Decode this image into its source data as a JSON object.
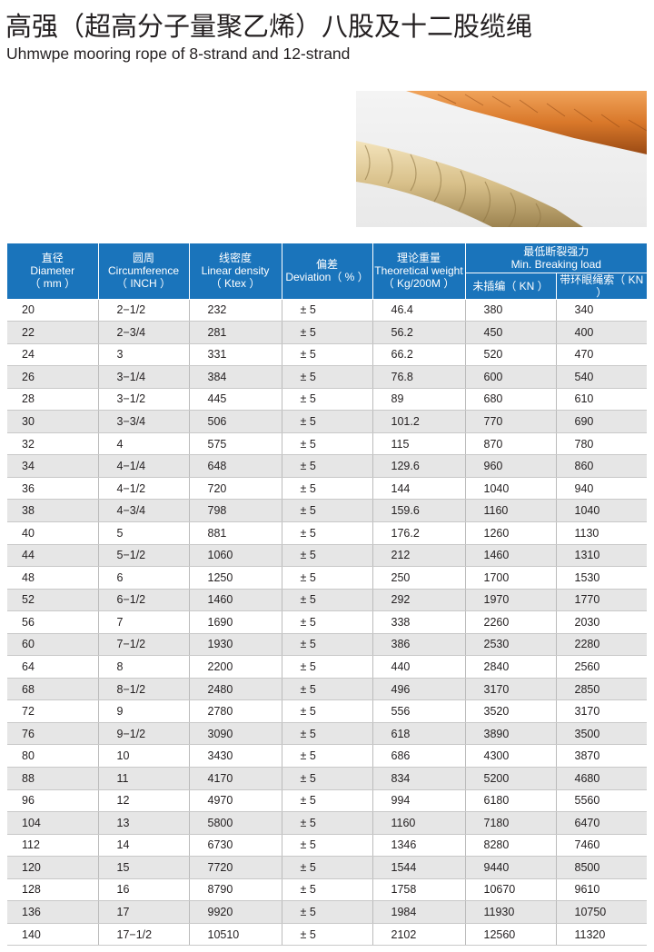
{
  "title": "高强（超高分子量聚乙烯）八股及十二股缆绳",
  "subtitle": "Uhmwpe mooring rope of 8-strand and 12-strand",
  "table": {
    "headers": [
      {
        "cn": "直径",
        "en": "Diameter",
        "unit": "（ mm ）"
      },
      {
        "cn": "圆周",
        "en": "Circumference",
        "unit": "（ INCH ）"
      },
      {
        "cn": "线密度",
        "en": "Linear density",
        "unit": "（ Ktex ）"
      },
      {
        "cn": "偏差",
        "en": "Deviation（ % ）"
      },
      {
        "cn": "理论重量",
        "en": "Theoretical weight",
        "unit": "（ Kg/200M ）"
      },
      {
        "cn": "最低断裂强力",
        "en": "Min. Breaking load"
      }
    ],
    "subheaders": [
      "未插编（ KN ）",
      "带环眼绳索（ KN ）"
    ],
    "rows": [
      [
        "20",
        "2−1/2",
        "232",
        "± 5",
        "46.4",
        "380",
        "340"
      ],
      [
        "22",
        "2−3/4",
        "281",
        "± 5",
        "56.2",
        "450",
        "400"
      ],
      [
        "24",
        "3",
        "331",
        "± 5",
        "66.2",
        "520",
        "470"
      ],
      [
        "26",
        "3−1/4",
        "384",
        "± 5",
        "76.8",
        "600",
        "540"
      ],
      [
        "28",
        "3−1/2",
        "445",
        "± 5",
        "89",
        "680",
        "610"
      ],
      [
        "30",
        "3−3/4",
        "506",
        "± 5",
        "101.2",
        "770",
        "690"
      ],
      [
        "32",
        "4",
        "575",
        "± 5",
        "115",
        "870",
        "780"
      ],
      [
        "34",
        "4−1/4",
        "648",
        "± 5",
        "129.6",
        "960",
        "860"
      ],
      [
        "36",
        "4−1/2",
        "720",
        "± 5",
        "144",
        "1040",
        "940"
      ],
      [
        "38",
        "4−3/4",
        "798",
        "± 5",
        "159.6",
        "1160",
        "1040"
      ],
      [
        "40",
        "5",
        "881",
        "± 5",
        "176.2",
        "1260",
        "1130"
      ],
      [
        "44",
        "5−1/2",
        "1060",
        "± 5",
        "212",
        "1460",
        "1310"
      ],
      [
        "48",
        "6",
        "1250",
        "± 5",
        "250",
        "1700",
        "1530"
      ],
      [
        "52",
        "6−1/2",
        "1460",
        "± 5",
        "292",
        "1970",
        "1770"
      ],
      [
        "56",
        "7",
        "1690",
        "± 5",
        "338",
        "2260",
        "2030"
      ],
      [
        "60",
        "7−1/2",
        "1930",
        "± 5",
        "386",
        "2530",
        "2280"
      ],
      [
        "64",
        "8",
        "2200",
        "± 5",
        "440",
        "2840",
        "2560"
      ],
      [
        "68",
        "8−1/2",
        "2480",
        "± 5",
        "496",
        "3170",
        "2850"
      ],
      [
        "72",
        "9",
        "2780",
        "± 5",
        "556",
        "3520",
        "3170"
      ],
      [
        "76",
        "9−1/2",
        "3090",
        "± 5",
        "618",
        "3890",
        "3500"
      ],
      [
        "80",
        "10",
        "3430",
        "± 5",
        "686",
        "4300",
        "3870"
      ],
      [
        "88",
        "11",
        "4170",
        "± 5",
        "834",
        "5200",
        "4680"
      ],
      [
        "96",
        "12",
        "4970",
        "± 5",
        "994",
        "6180",
        "5560"
      ],
      [
        "104",
        "13",
        "5800",
        "± 5",
        "1160",
        "7180",
        "6470"
      ],
      [
        "112",
        "14",
        "6730",
        "± 5",
        "1346",
        "8280",
        "7460"
      ],
      [
        "120",
        "15",
        "7720",
        "± 5",
        "1544",
        "9440",
        "8500"
      ],
      [
        "128",
        "16",
        "8790",
        "± 5",
        "1758",
        "10670",
        "9610"
      ],
      [
        "136",
        "17",
        "9920",
        "± 5",
        "1984",
        "11930",
        "10750"
      ],
      [
        "140",
        "17−1/2",
        "10510",
        "± 5",
        "2102",
        "12560",
        "11320"
      ]
    ]
  },
  "colors": {
    "header": "#1a74bb",
    "alt_row": "#e6e6e6",
    "orange_rope": "#d9782a",
    "beige_rope": "#d8c08a"
  }
}
